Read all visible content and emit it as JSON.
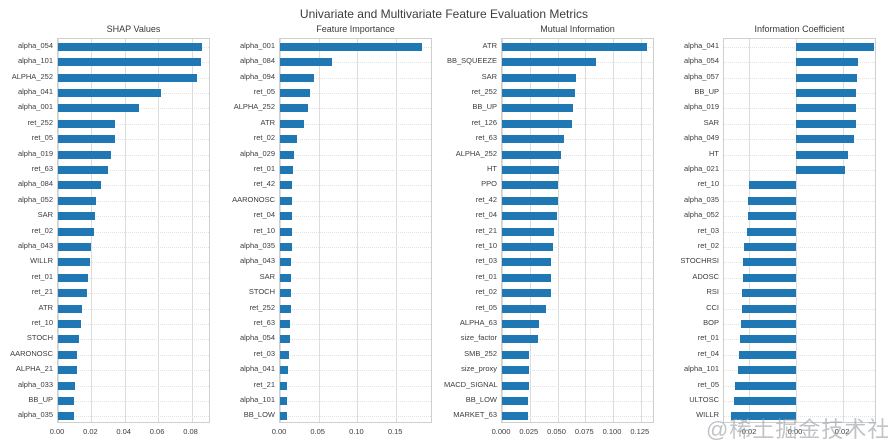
{
  "figure": {
    "title": "Univariate and Multivariate Feature Evaluation Metrics",
    "watermark": "@稀土掘金技术社区",
    "bar_color": "#1f77b4",
    "grid_color": "#dcdcdc",
    "border_color": "#cfcfcf",
    "background": "#ffffff"
  },
  "chart_data": [
    {
      "type": "bar",
      "orientation": "horizontal",
      "title": "SHAP Values",
      "xlabel": "",
      "ylabel": "",
      "xlim": [
        0,
        0.0905
      ],
      "xticks": [
        0,
        0.02,
        0.04,
        0.06,
        0.08
      ],
      "xtick_labels": [
        "0.00",
        "0.02",
        "0.04",
        "0.06",
        "0.08"
      ],
      "grid": true,
      "categories": [
        "alpha_054",
        "alpha_101",
        "ALPHA_252",
        "alpha_041",
        "alpha_001",
        "ret_252",
        "ret_05",
        "alpha_019",
        "ret_63",
        "alpha_084",
        "alpha_052",
        "SAR",
        "ret_02",
        "alpha_043",
        "WILLR",
        "ret_01",
        "ret_21",
        "ATR",
        "ret_10",
        "STOCH",
        "AARONOSC",
        "ALPHA_21",
        "alpha_033",
        "BB_UP",
        "alpha_035"
      ],
      "values": [
        0.0865,
        0.0855,
        0.0835,
        0.0615,
        0.0485,
        0.034,
        0.034,
        0.032,
        0.03,
        0.0255,
        0.0225,
        0.022,
        0.0215,
        0.0197,
        0.0193,
        0.018,
        0.0175,
        0.0145,
        0.014,
        0.0125,
        0.0115,
        0.0112,
        0.01,
        0.0095,
        0.0095
      ]
    },
    {
      "type": "bar",
      "orientation": "horizontal",
      "title": "Feature Importance",
      "xlabel": "",
      "ylabel": "",
      "xlim": [
        0,
        0.195
      ],
      "xticks": [
        0,
        0.05,
        0.1,
        0.15
      ],
      "xtick_labels": [
        "0.00",
        "0.05",
        "0.10",
        "0.15"
      ],
      "grid": true,
      "categories": [
        "alpha_001",
        "alpha_084",
        "alpha_094",
        "ret_05",
        "ALPHA_252",
        "ATR",
        "ret_02",
        "alpha_029",
        "ret_01",
        "ret_42",
        "AARONOSC",
        "ret_04",
        "ret_10",
        "alpha_035",
        "alpha_043",
        "SAR",
        "STOCH",
        "ret_252",
        "ret_63",
        "alpha_054",
        "ret_03",
        "alpha_041",
        "ret_21",
        "alpha_101",
        "BB_LOW"
      ],
      "values": [
        0.183,
        0.067,
        0.044,
        0.039,
        0.036,
        0.031,
        0.022,
        0.0185,
        0.0165,
        0.016,
        0.0158,
        0.0156,
        0.0155,
        0.015,
        0.0147,
        0.0143,
        0.0138,
        0.0136,
        0.0132,
        0.0128,
        0.011,
        0.0097,
        0.0095,
        0.009,
        0.0085
      ]
    },
    {
      "type": "bar",
      "orientation": "horizontal",
      "title": "Mutual Information",
      "xlabel": "",
      "ylabel": "",
      "xlim": [
        0,
        0.136
      ],
      "xticks": [
        0,
        0.025,
        0.05,
        0.075,
        0.1,
        0.125
      ],
      "xtick_labels": [
        "0.000",
        "0.025",
        "0.050",
        "0.075",
        "0.100",
        "0.125"
      ],
      "grid": true,
      "categories": [
        "ATR",
        "BB_SQUEEZE",
        "SAR",
        "ret_252",
        "BB_UP",
        "ret_126",
        "ret_63",
        "ALPHA_252",
        "HT",
        "PPO",
        "ret_42",
        "ret_04",
        "ret_21",
        "ret_10",
        "ret_03",
        "ret_01",
        "ret_02",
        "ret_05",
        "ALPHA_63",
        "size_factor",
        "SMB_252",
        "size_proxy",
        "MACD_SIGNAL",
        "BB_LOW",
        "MARKET_63"
      ],
      "values": [
        0.1305,
        0.085,
        0.067,
        0.0655,
        0.0635,
        0.0628,
        0.0562,
        0.0533,
        0.0515,
        0.0508,
        0.0505,
        0.0494,
        0.047,
        0.0458,
        0.0445,
        0.0442,
        0.044,
        0.04,
        0.0337,
        0.0325,
        0.0245,
        0.0244,
        0.0243,
        0.0238,
        0.0236
      ]
    },
    {
      "type": "bar",
      "orientation": "horizontal",
      "title": "Information Coefficient",
      "xlabel": "",
      "ylabel": "",
      "xlim": [
        -0.0305,
        0.0335
      ],
      "xticks": [
        -0.02,
        0,
        0.02
      ],
      "xtick_labels": [
        "-0.02",
        "0.00",
        "0.02"
      ],
      "grid": true,
      "categories": [
        "alpha_041",
        "alpha_054",
        "alpha_057",
        "BB_UP",
        "alpha_019",
        "SAR",
        "alpha_049",
        "HT",
        "alpha_021",
        "ret_10",
        "alpha_035",
        "alpha_052",
        "ret_03",
        "ret_02",
        "STOCHRSI",
        "ADOSC",
        "RSI",
        "CCI",
        "BOP",
        "ret_01",
        "ret_04",
        "alpha_101",
        "ret_05",
        "ULTOSC",
        "WILLR"
      ],
      "values": [
        0.033,
        0.0264,
        0.0258,
        0.0255,
        0.0254,
        0.0252,
        0.0246,
        0.0219,
        0.0209,
        -0.0201,
        -0.0202,
        -0.0203,
        -0.0208,
        -0.022,
        -0.0223,
        -0.0225,
        -0.0227,
        -0.0228,
        -0.0235,
        -0.0239,
        -0.024,
        -0.0246,
        -0.0258,
        -0.0262,
        -0.0275
      ]
    }
  ]
}
